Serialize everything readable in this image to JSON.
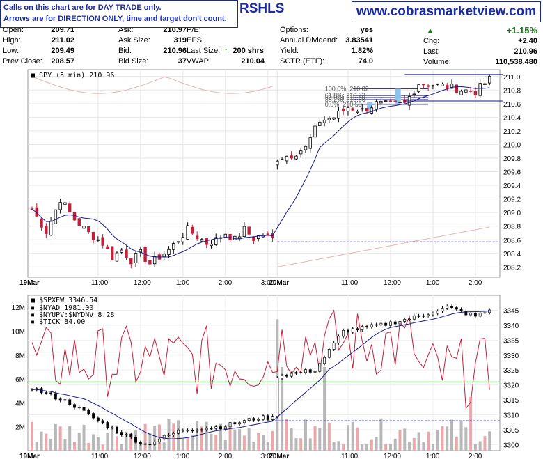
{
  "notice": {
    "line1": "Calls on this chart are for DAY TRADE only.",
    "line2": "Arrows are for DIRECTION ONLY, time and target don't count."
  },
  "symbol_fragment": "RSHLS",
  "site": "www.cobrasmarketview.com",
  "quote": {
    "open_label": "Open:",
    "open": "209.71",
    "high_label": "High:",
    "high": "211.02",
    "low_label": "Low:",
    "low": "209.49",
    "prev_label": "Prev Close:",
    "prev": "208.57",
    "ask_label": "Ask:",
    "ask": "210.97",
    "asksize_label": "Ask Size:",
    "asksize": "319",
    "bid_label": "Bid:",
    "bid": "210.96",
    "bidsize_label": "Bid Size:",
    "bidsize": "37",
    "pe_label": "P/E:",
    "eps_label": "EPS:",
    "lastsize_label": "Last Size:",
    "lastsize": "200 shrs",
    "vwap_label": "VWAP:",
    "vwap": "210.04",
    "options_label": "Options:",
    "options": "yes",
    "div_label": "Annual Dividend:",
    "div": "3.83541",
    "yield_label": "Yield:",
    "yield": "1.82%",
    "sctr_label": "SCTR (ETF):",
    "sctr": "74.0",
    "pct": "+1.15%",
    "chg_label": "Chg:",
    "chg": "+2.40",
    "last_label": "Last:",
    "last": "210.96",
    "vol_label": "Volume:",
    "vol": "110,538,480",
    "up_color": "#1a7a1a"
  },
  "chart_data": [
    {
      "type": "candlestick",
      "title": "SPY (5 min) 210.96",
      "x_ticks": [
        "19Mar",
        "11:00",
        "12:00",
        "1:00",
        "2:00",
        "3:00",
        "20Mar",
        "11:00",
        "12:00",
        "1:00",
        "2:00",
        "3:00"
      ],
      "y_ticks": [
        "211.0",
        "210.8",
        "210.6",
        "210.4",
        "210.2",
        "210.0",
        "209.8",
        "209.6",
        "209.4",
        "209.2",
        "209.0",
        "208.8",
        "208.6",
        "208.4",
        "208.2"
      ],
      "ylim": [
        208.05,
        211.1
      ],
      "fib_labels": [
        "100.0%: 210.82",
        "61.8%: 210.72",
        "50.0%: 210.69",
        "38.2%: 210.66",
        "0.0%: 210.59"
      ],
      "levels": [
        208.57,
        210.64,
        211.03
      ],
      "close_path": [
        [
          0,
          209.05
        ],
        [
          3,
          208.72
        ],
        [
          6,
          209.2
        ],
        [
          9,
          208.9
        ],
        [
          12,
          208.7
        ],
        [
          15,
          208.55
        ],
        [
          17,
          208.35
        ],
        [
          19,
          208.45
        ],
        [
          21,
          208.3
        ],
        [
          23,
          208.4
        ],
        [
          25,
          208.25
        ],
        [
          27,
          208.35
        ],
        [
          29,
          208.45
        ],
        [
          31,
          208.6
        ],
        [
          33,
          208.75
        ],
        [
          35,
          208.65
        ],
        [
          37,
          208.55
        ],
        [
          39,
          208.6
        ],
        [
          41,
          208.7
        ],
        [
          43,
          208.6
        ],
        [
          45,
          208.75
        ],
        [
          47,
          208.62
        ],
        [
          49,
          208.68
        ],
        [
          51,
          208.62
        ],
        [
          52,
          209.8
        ],
        [
          55,
          209.85
        ],
        [
          58,
          209.95
        ],
        [
          61,
          210.35
        ],
        [
          64,
          210.4
        ],
        [
          67,
          210.55
        ],
        [
          70,
          210.5
        ],
        [
          73,
          210.6
        ],
        [
          76,
          210.58
        ],
        [
          79,
          210.6
        ],
        [
          82,
          210.9
        ],
        [
          85,
          210.88
        ],
        [
          88,
          210.85
        ],
        [
          91,
          210.8
        ],
        [
          94,
          210.78
        ],
        [
          97,
          210.96
        ]
      ],
      "colors": {
        "up": "#000000",
        "down": "#c0203a",
        "ma": "#1a1a8a",
        "vwap_prev": "#e6b4b4"
      }
    },
    {
      "type": "line",
      "title": "$SPXEW 3346.54",
      "series": [
        {
          "name": "$NYAD 1981.00"
        },
        {
          "name": "$NYUPV:$NYDNV 8.28"
        },
        {
          "name": "$TICK 84.00"
        }
      ],
      "x_ticks": [
        "19Mar",
        "11:00",
        "12:00",
        "1:00",
        "2:00",
        "3:00",
        "20Mar",
        "11:00",
        "12:00",
        "1:00",
        "2:00",
        "3:00"
      ],
      "y_right_ticks": [
        "3345",
        "3340",
        "3335",
        "3330",
        "3325",
        "3320",
        "3315",
        "3310",
        "3305",
        "3300"
      ],
      "y_left_ticks": [
        "12M",
        "10M",
        "8M",
        "6M",
        "4M",
        "2M"
      ],
      "ylim": [
        3298,
        3350
      ],
      "volume_ylim": [
        0,
        13
      ]
    }
  ]
}
